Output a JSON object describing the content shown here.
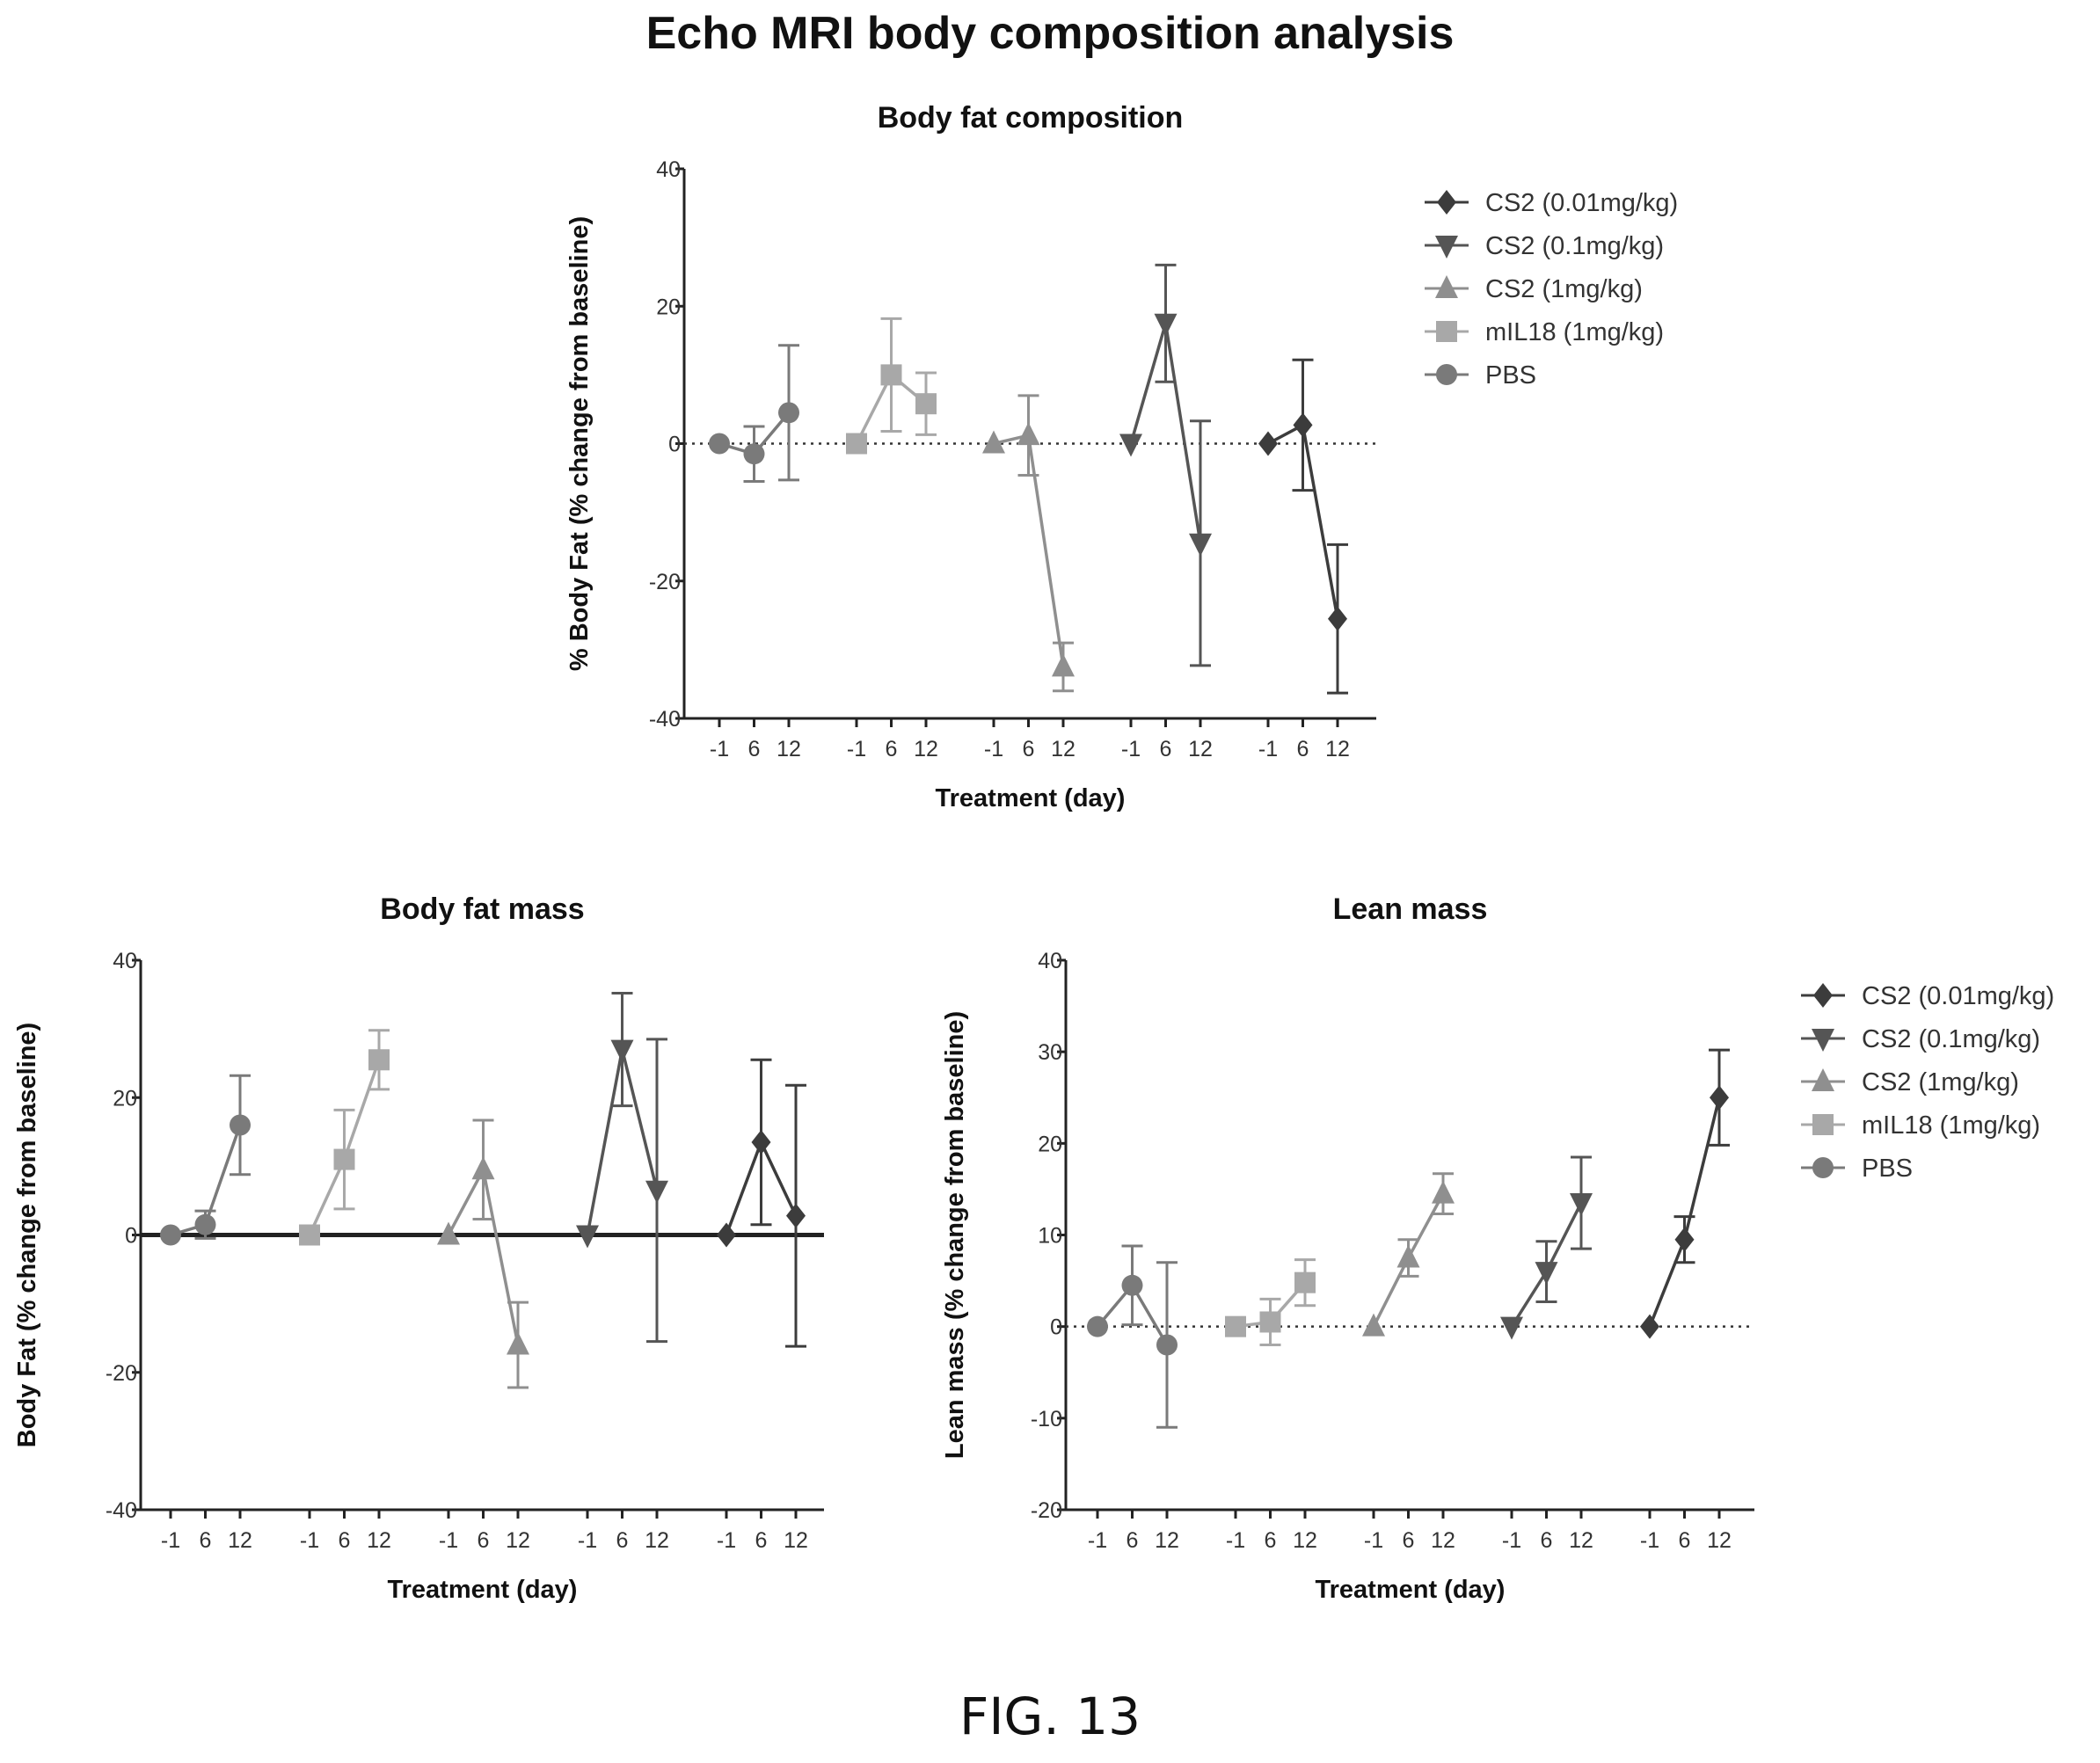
{
  "title": "Echo MRI body composition analysis",
  "figure_label": "FIG. 13",
  "colors": {
    "CS2 (0.01mg/kg)": "#3c3c3c",
    "CS2 (0.1mg/kg)": "#555555",
    "CS2 (1mg/kg)": "#8f8f8f",
    "mIL18 (1mg/kg)": "#a8a8a8",
    "PBS": "#7a7a7a"
  },
  "chart_data": [
    {
      "type": "line",
      "title": "Body fat composition",
      "xlabel": "Treatment (day)",
      "ylabel": "% Body Fat (% change from baseline)",
      "ylim": [
        -40,
        40
      ],
      "yticks": [
        -40,
        -20,
        0,
        20,
        40
      ],
      "baseline": "dotted",
      "legend": "right",
      "x_ticks": [
        "-1",
        "6",
        "12"
      ],
      "groups": [
        "PBS",
        "mIL18 (1mg/kg)",
        "CS2 (1mg/kg)",
        "CS2 (0.1mg/kg)",
        "CS2 (0.01mg/kg)"
      ],
      "series": [
        {
          "name": "PBS",
          "marker": "circle",
          "values": [
            0,
            -1.5,
            4.5
          ],
          "errors": [
            0,
            4,
            9.8
          ]
        },
        {
          "name": "mIL18 (1mg/kg)",
          "marker": "square",
          "values": [
            0,
            10,
            5.8
          ],
          "errors": [
            0,
            8.2,
            4.5
          ]
        },
        {
          "name": "CS2 (1mg/kg)",
          "marker": "triangle-up",
          "values": [
            0,
            1.2,
            -32.5
          ],
          "errors": [
            0,
            5.8,
            3.5
          ]
        },
        {
          "name": "CS2 (0.1mg/kg)",
          "marker": "triangle-down",
          "values": [
            0,
            17.5,
            -14.5
          ],
          "errors": [
            0,
            8.5,
            17.8
          ]
        },
        {
          "name": "CS2 (0.01mg/kg)",
          "marker": "diamond",
          "values": [
            0,
            2.7,
            -25.5
          ],
          "errors": [
            0,
            9.5,
            10.8
          ]
        }
      ],
      "legend_order": [
        "CS2 (0.01mg/kg)",
        "CS2 (0.1mg/kg)",
        "CS2 (1mg/kg)",
        "mIL18 (1mg/kg)",
        "PBS"
      ]
    },
    {
      "type": "line",
      "title": "Body fat mass",
      "xlabel": "Treatment (day)",
      "ylabel": "Body Fat (% change from baseline)",
      "ylim": [
        -40,
        40
      ],
      "yticks": [
        -40,
        -20,
        0,
        20,
        40
      ],
      "baseline": "solid",
      "x_ticks": [
        "-1",
        "6",
        "12"
      ],
      "groups": [
        "PBS",
        "mIL18 (1mg/kg)",
        "CS2 (1mg/kg)",
        "CS2 (0.1mg/kg)",
        "CS2 (0.01mg/kg)"
      ],
      "series": [
        {
          "name": "PBS",
          "marker": "circle",
          "values": [
            0,
            1.5,
            16
          ],
          "errors": [
            0,
            2,
            7.2
          ]
        },
        {
          "name": "mIL18 (1mg/kg)",
          "marker": "square",
          "values": [
            0,
            11,
            25.5
          ],
          "errors": [
            0,
            7.2,
            4.3
          ]
        },
        {
          "name": "CS2 (1mg/kg)",
          "marker": "triangle-up",
          "values": [
            0,
            9.5,
            -16
          ],
          "errors": [
            0,
            7.2,
            6.2
          ]
        },
        {
          "name": "CS2 (0.1mg/kg)",
          "marker": "triangle-down",
          "values": [
            0,
            27,
            6.5
          ],
          "errors": [
            0,
            8.2,
            22
          ]
        },
        {
          "name": "CS2 (0.01mg/kg)",
          "marker": "diamond",
          "values": [
            0,
            13.5,
            2.8
          ],
          "errors": [
            0,
            12,
            19
          ]
        }
      ]
    },
    {
      "type": "line",
      "title": "Lean mass",
      "xlabel": "Treatment (day)",
      "ylabel": "Lean mass (% change from baseline)",
      "ylim": [
        -20,
        40
      ],
      "yticks": [
        -20,
        -10,
        0,
        10,
        20,
        30,
        40
      ],
      "baseline": "dotted",
      "legend": "right",
      "x_ticks": [
        "-1",
        "6",
        "12"
      ],
      "groups": [
        "PBS",
        "mIL18 (1mg/kg)",
        "CS2 (1mg/kg)",
        "CS2 (0.1mg/kg)",
        "CS2 (0.01mg/kg)"
      ],
      "series": [
        {
          "name": "PBS",
          "marker": "circle",
          "values": [
            0,
            4.5,
            -2
          ],
          "errors": [
            0,
            4.3,
            9
          ]
        },
        {
          "name": "mIL18 (1mg/kg)",
          "marker": "square",
          "values": [
            0,
            0.5,
            4.8
          ],
          "errors": [
            0,
            2.5,
            2.5
          ]
        },
        {
          "name": "CS2 (1mg/kg)",
          "marker": "triangle-up",
          "values": [
            0,
            7.5,
            14.5
          ],
          "errors": [
            0,
            2,
            2.2
          ]
        },
        {
          "name": "CS2 (0.1mg/kg)",
          "marker": "triangle-down",
          "values": [
            0,
            6,
            13.5
          ],
          "errors": [
            0,
            3.3,
            5
          ]
        },
        {
          "name": "CS2 (0.01mg/kg)",
          "marker": "diamond",
          "values": [
            0,
            9.5,
            25
          ],
          "errors": [
            0,
            2.5,
            5.2
          ]
        }
      ],
      "legend_order": [
        "CS2 (0.01mg/kg)",
        "CS2 (0.1mg/kg)",
        "CS2 (1mg/kg)",
        "mIL18 (1mg/kg)",
        "PBS"
      ]
    }
  ]
}
